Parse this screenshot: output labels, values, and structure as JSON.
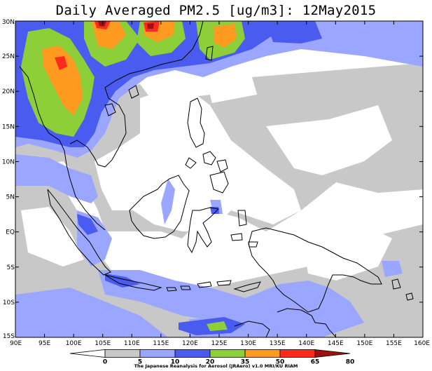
{
  "title": "Daily Averaged PM2.5 [ug/m3]: 12May2015",
  "credit": "The Japanese Reanalysis for Aerosol (JRAero) v1.0 MRI/KU RIAM",
  "lon_labels": [
    "90E",
    "95E",
    "100E",
    "105E",
    "110E",
    "115E",
    "120E",
    "125E",
    "130E",
    "135E",
    "140E",
    "145E",
    "150E",
    "155E",
    "160E"
  ],
  "lat_labels": [
    "30N",
    "25N",
    "20N",
    "15N",
    "10N",
    "5N",
    "EQ",
    "5S",
    "10S",
    "15S"
  ],
  "colorbar": {
    "labels": [
      "0",
      "5",
      "10",
      "20",
      "35",
      "50",
      "65",
      "80"
    ],
    "colors": [
      "#ffffff",
      "#c8c8c8",
      "#9aa6ff",
      "#4a5cf0",
      "#8ccf38",
      "#ff9a20",
      "#ff2a1a",
      "#a01010"
    ],
    "range_bins": [
      {
        "from": 0,
        "to": 5,
        "color": "#ffffff"
      },
      {
        "from": 5,
        "to": 10,
        "color": "#c8c8c8"
      },
      {
        "from": 10,
        "to": 20,
        "color": "#9aa6ff"
      },
      {
        "from": 20,
        "to": 35,
        "color": "#4a5cf0"
      },
      {
        "from": 35,
        "to": 50,
        "color": "#8ccf38"
      },
      {
        "from": 50,
        "to": 65,
        "color": "#ff9a20"
      },
      {
        "from": 65,
        "to": 80,
        "color": "#ff2a1a"
      },
      {
        "from": 80,
        "to": null,
        "color": "#a01010"
      }
    ]
  },
  "map_extent": {
    "lon": [
      90,
      160
    ],
    "lat": [
      -15,
      30
    ]
  }
}
